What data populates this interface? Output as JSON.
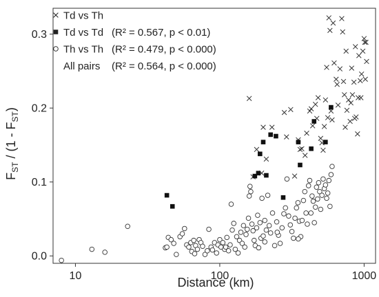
{
  "chart_data": {
    "type": "scatter",
    "title": "",
    "xlabel": "Distance (km)",
    "ylabel": "F_ST / (1 - F_ST)",
    "xscale": "log10",
    "xlim": [
      7,
      1200
    ],
    "ylim": [
      -0.01,
      0.335
    ],
    "x_ticks": [
      10,
      100,
      1000
    ],
    "x_tick_labels": [
      "10",
      "100",
      "1000"
    ],
    "y_ticks": [
      0.0,
      0.1,
      0.2,
      0.3
    ],
    "y_tick_labels": [
      "0.0",
      "0.1",
      "0.2",
      "0.3"
    ],
    "grid": false,
    "legend_position": "top-left",
    "legend": [
      {
        "marker": "x",
        "label": "Td vs Th",
        "stat": ""
      },
      {
        "marker": "square",
        "label": "Td vs Td",
        "stat": "(R² = 0.567, p < 0.01)"
      },
      {
        "marker": "circle",
        "label": "Th vs Th",
        "stat": "(R² = 0.479, p < 0.000)"
      },
      {
        "marker": "none",
        "label": "All pairs",
        "stat": "(R² = 0.564, p < 0.000)"
      }
    ],
    "series": [
      {
        "name": "Td vs Th",
        "marker": "x",
        "color": "#333333",
        "points": [
          [
            160,
            0.213
          ],
          [
            170,
            0.107
          ],
          [
            180,
            0.144
          ],
          [
            195,
            0.112
          ],
          [
            200,
            0.174
          ],
          [
            210,
            0.131
          ],
          [
            230,
            0.174
          ],
          [
            280,
            0.194
          ],
          [
            290,
            0.161
          ],
          [
            310,
            0.198
          ],
          [
            330,
            0.108
          ],
          [
            350,
            0.157
          ],
          [
            370,
            0.145
          ],
          [
            390,
            0.136
          ],
          [
            400,
            0.166
          ],
          [
            420,
            0.196
          ],
          [
            440,
            0.176
          ],
          [
            460,
            0.205
          ],
          [
            480,
            0.214
          ],
          [
            500,
            0.159
          ],
          [
            510,
            0.153
          ],
          [
            520,
            0.143
          ],
          [
            540,
            0.211
          ],
          [
            550,
            0.255
          ],
          [
            560,
            0.187
          ],
          [
            570,
            0.322
          ],
          [
            580,
            0.305
          ],
          [
            590,
            0.196
          ],
          [
            600,
            0.184
          ],
          [
            610,
            0.315
          ],
          [
            620,
            0.261
          ],
          [
            640,
            0.239
          ],
          [
            660,
            0.204
          ],
          [
            680,
            0.253
          ],
          [
            700,
            0.321
          ],
          [
            710,
            0.303
          ],
          [
            720,
            0.236
          ],
          [
            730,
            0.218
          ],
          [
            740,
            0.174
          ],
          [
            760,
            0.197
          ],
          [
            780,
            0.211
          ],
          [
            800,
            0.182
          ],
          [
            810,
            0.207
          ],
          [
            820,
            0.254
          ],
          [
            830,
            0.218
          ],
          [
            850,
            0.235
          ],
          [
            860,
            0.186
          ],
          [
            880,
            0.188
          ],
          [
            900,
            0.165
          ],
          [
            910,
            0.214
          ],
          [
            920,
            0.271
          ],
          [
            940,
            0.237
          ],
          [
            960,
            0.246
          ],
          [
            980,
            0.277
          ],
          [
            1000,
            0.294
          ],
          [
            1010,
            0.289
          ],
          [
            1020,
            0.239
          ],
          [
            1030,
            0.289
          ],
          [
            1040,
            0.263
          ],
          [
            950,
            0.214
          ],
          [
            870,
            0.283
          ],
          [
            650,
            0.232
          ],
          [
            530,
            0.175
          ],
          [
            470,
            0.186
          ],
          [
            360,
            0.144
          ],
          [
            430,
            0.199
          ],
          [
            750,
            0.277
          ]
        ]
      },
      {
        "name": "Td vs Td",
        "marker": "square",
        "color": "#111111",
        "points": [
          [
            43,
            0.082
          ],
          [
            47,
            0.067
          ],
          [
            175,
            0.108
          ],
          [
            185,
            0.112
          ],
          [
            190,
            0.138
          ],
          [
            200,
            0.154
          ],
          [
            210,
            0.109
          ],
          [
            225,
            0.164
          ],
          [
            245,
            0.162
          ],
          [
            275,
            0.079
          ],
          [
            350,
            0.154
          ],
          [
            360,
            0.123
          ],
          [
            430,
            0.145
          ],
          [
            450,
            0.182
          ],
          [
            540,
            0.154
          ],
          [
            590,
            0.201
          ]
        ]
      },
      {
        "name": "Th vs Th",
        "marker": "circle",
        "color": "#333333",
        "points": [
          [
            8,
            -0.006
          ],
          [
            13,
            0.009
          ],
          [
            16,
            0.005
          ],
          [
            23,
            0.04
          ],
          [
            42,
            0.011
          ],
          [
            43,
            0.012
          ],
          [
            44,
            0.025
          ],
          [
            46,
            0.022
          ],
          [
            48,
            0.017
          ],
          [
            50,
            0.002
          ],
          [
            53,
            0.026
          ],
          [
            55,
            0.03
          ],
          [
            57,
            0.037
          ],
          [
            59,
            0.015
          ],
          [
            61,
            0.012
          ],
          [
            63,
            0.018
          ],
          [
            64,
            0.006
          ],
          [
            66,
            0.021
          ],
          [
            67,
            0.003
          ],
          [
            68,
            0.014
          ],
          [
            70,
            0.009
          ],
          [
            72,
            0.022
          ],
          [
            74,
            0.018
          ],
          [
            76,
            0.013
          ],
          [
            79,
            0.002
          ],
          [
            82,
            0.007
          ],
          [
            84,
            0.036
          ],
          [
            87,
            0.012
          ],
          [
            89,
            0.008
          ],
          [
            92,
            0.018
          ],
          [
            95,
            0.004
          ],
          [
            97,
            0.015
          ],
          [
            100,
            0.022
          ],
          [
            102,
            0.012
          ],
          [
            105,
            0.018
          ],
          [
            108,
            0.009
          ],
          [
            110,
            0.012
          ],
          [
            112,
            0.025
          ],
          [
            115,
            0.007
          ],
          [
            118,
            0.015
          ],
          [
            120,
            0.07
          ],
          [
            122,
            0.035
          ],
          [
            125,
            0.044
          ],
          [
            128,
            0.009
          ],
          [
            131,
            0.026
          ],
          [
            134,
            0.004
          ],
          [
            137,
            0.021
          ],
          [
            140,
            0.032
          ],
          [
            143,
            0.017
          ],
          [
            146,
            0.041
          ],
          [
            149,
            0.012
          ],
          [
            152,
            0.029
          ],
          [
            155,
            0.036
          ],
          [
            158,
            0.051
          ],
          [
            160,
            0.081
          ],
          [
            162,
            0.094
          ],
          [
            164,
            0.087
          ],
          [
            167,
            0.043
          ],
          [
            170,
            0.034
          ],
          [
            173,
            0.021
          ],
          [
            176,
            0.014
          ],
          [
            180,
            0.038
          ],
          [
            183,
            0.055
          ],
          [
            186,
            0.011
          ],
          [
            190,
            0.045
          ],
          [
            193,
            0.024
          ],
          [
            196,
            0.078
          ],
          [
            200,
            0.027
          ],
          [
            205,
            0.019
          ],
          [
            210,
            0.035
          ],
          [
            215,
            0.082
          ],
          [
            220,
            0.041
          ],
          [
            225,
            0.031
          ],
          [
            232,
            0.058
          ],
          [
            240,
            0.014
          ],
          [
            248,
            0.046
          ],
          [
            255,
            0.028
          ],
          [
            262,
            0.017
          ],
          [
            270,
            0.038
          ],
          [
            278,
            0.057
          ],
          [
            285,
            0.065
          ],
          [
            292,
            0.104
          ],
          [
            300,
            0.054
          ],
          [
            308,
            0.042
          ],
          [
            316,
            0.033
          ],
          [
            324,
            0.024
          ],
          [
            332,
            0.051
          ],
          [
            340,
            0.065
          ],
          [
            348,
            0.072
          ],
          [
            356,
            0.047
          ],
          [
            364,
            0.026
          ],
          [
            372,
            0.048
          ],
          [
            380,
            0.075
          ],
          [
            388,
            0.087
          ],
          [
            396,
            0.058
          ],
          [
            404,
            0.043
          ],
          [
            412,
            0.095
          ],
          [
            420,
            0.102
          ],
          [
            428,
            0.058
          ],
          [
            436,
            0.081
          ],
          [
            444,
            0.074
          ],
          [
            452,
            0.045
          ],
          [
            460,
            0.066
          ],
          [
            468,
            0.093
          ],
          [
            476,
            0.077
          ],
          [
            484,
            0.099
          ],
          [
            492,
            0.087
          ],
          [
            500,
            0.063
          ],
          [
            510,
            0.082
          ],
          [
            520,
            0.104
          ],
          [
            530,
            0.091
          ],
          [
            540,
            0.096
          ],
          [
            550,
            0.078
          ],
          [
            560,
            0.085
          ],
          [
            570,
            0.102
          ],
          [
            580,
            0.067
          ],
          [
            590,
            0.11
          ],
          [
            600,
            0.121
          ],
          [
            350,
            0.023
          ],
          [
            250,
            0.032
          ],
          [
            205,
            0.048
          ]
        ]
      }
    ]
  }
}
